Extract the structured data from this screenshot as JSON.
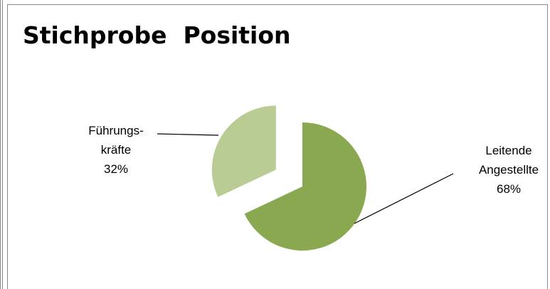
{
  "chart_data": {
    "type": "pie",
    "title": "Stichprobe  Position",
    "slices": [
      {
        "label_lines": [
          "Leitende",
          "Angestellte"
        ],
        "percent_label": "68%",
        "value": 68,
        "color": "#8aa84f",
        "exploded": false
      },
      {
        "label_lines": [
          "Führungs-",
          "kräfte"
        ],
        "percent_label": "32%",
        "value": 32,
        "color": "#b8cc94",
        "exploded": true
      }
    ],
    "start_angle_deg": -90,
    "legend": "none"
  }
}
